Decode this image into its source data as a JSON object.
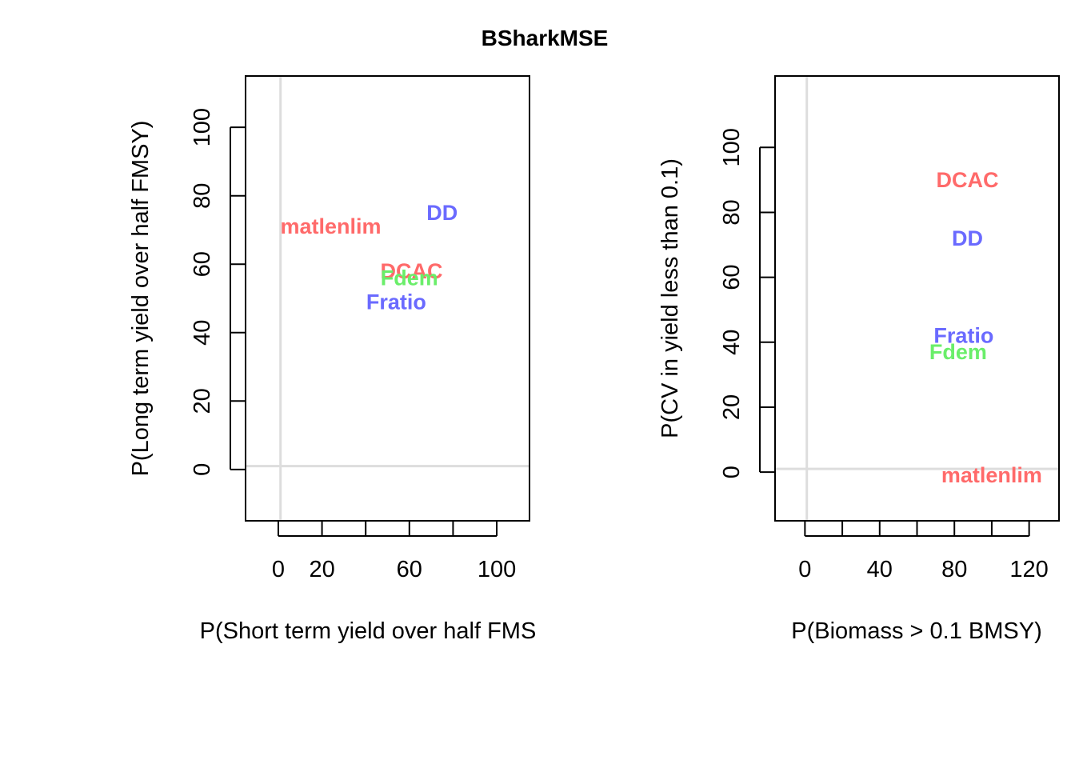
{
  "title": "BSharkMSE",
  "chart_data": [
    {
      "type": "scatter",
      "xlabel": "P(Short term yield over half FMS",
      "ylabel": "P(Long term yield over half FMSY)",
      "xlim": [
        -15,
        115
      ],
      "ylim": [
        -15,
        115
      ],
      "xticks": [
        0,
        20,
        40,
        60,
        80,
        100
      ],
      "xtick_labels": [
        "0",
        "20",
        "",
        "60",
        "",
        "100"
      ],
      "yticks": [
        0,
        20,
        40,
        60,
        80,
        100
      ],
      "ytick_labels": [
        "0",
        "20",
        "40",
        "60",
        "80",
        "100"
      ],
      "reference_lines": {
        "x": 1,
        "y": 1
      },
      "points": [
        {
          "label": "matlenlim",
          "x": 24,
          "y": 71,
          "color": "#FF6A6A"
        },
        {
          "label": "DD",
          "x": 75,
          "y": 75,
          "color": "#6A6AFF"
        },
        {
          "label": "DCAC",
          "x": 61,
          "y": 58,
          "color": "#FF6A6A"
        },
        {
          "label": "Fdem",
          "x": 60,
          "y": 56,
          "color": "#6AEE6A"
        },
        {
          "label": "Fratio",
          "x": 54,
          "y": 49,
          "color": "#6A6AFF"
        }
      ]
    },
    {
      "type": "scatter",
      "xlabel": "P(Biomass > 0.1 BMSY)",
      "ylabel": "P(CV in yield less than 0.1)",
      "xlim": [
        -16,
        136
      ],
      "ylim": [
        -15,
        122
      ],
      "xticks": [
        0,
        20,
        40,
        60,
        80,
        100,
        120
      ],
      "xtick_labels": [
        "0",
        "",
        "40",
        "",
        "80",
        "",
        "120"
      ],
      "yticks": [
        0,
        20,
        40,
        60,
        80,
        100
      ],
      "ytick_labels": [
        "0",
        "20",
        "40",
        "60",
        "80",
        "100"
      ],
      "reference_lines": {
        "x": 1,
        "y": 1
      },
      "points": [
        {
          "label": "DCAC",
          "x": 87,
          "y": 90,
          "color": "#FF6A6A"
        },
        {
          "label": "DD",
          "x": 87,
          "y": 72,
          "color": "#6A6AFF"
        },
        {
          "label": "Fratio",
          "x": 85,
          "y": 42,
          "color": "#6A6AFF"
        },
        {
          "label": "Fdem",
          "x": 82,
          "y": 37,
          "color": "#6AEE6A"
        },
        {
          "label": "matlenlim",
          "x": 100,
          "y": -1,
          "color": "#FF6A6A"
        }
      ]
    }
  ]
}
